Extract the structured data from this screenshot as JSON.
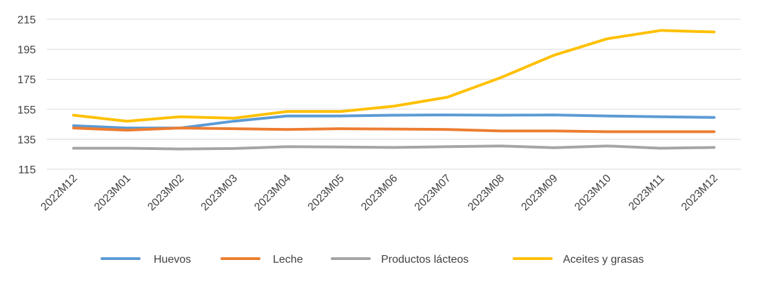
{
  "chart_data": {
    "type": "line",
    "title": "",
    "xlabel": "",
    "ylabel": "",
    "categories": [
      "2022M12",
      "2023M01",
      "2023M02",
      "2023M03",
      "2023M04",
      "2023M05",
      "2023M06",
      "2023M07",
      "2023M08",
      "2023M09",
      "2023M10",
      "2023M11",
      "2023M12"
    ],
    "y_ticks": [
      115,
      135,
      155,
      175,
      195,
      215
    ],
    "ylim": [
      115,
      215
    ],
    "grid": true,
    "legend_position": "bottom",
    "series": [
      {
        "name": "Huevos",
        "color": "#5B9BD5",
        "values": [
          144,
          142.5,
          142.5,
          147,
          150.5,
          150.5,
          151,
          151.2,
          151,
          151.2,
          150.5,
          150,
          149.5
        ]
      },
      {
        "name": "Leche",
        "color": "#ED7D31",
        "values": [
          142.5,
          141,
          142.5,
          142,
          141.5,
          142,
          141.8,
          141.5,
          140.5,
          140.5,
          140,
          140,
          140
        ]
      },
      {
        "name": "Productos lácteos",
        "color": "#A5A5A5",
        "values": [
          129,
          129,
          128.5,
          128.8,
          130,
          129.8,
          129.5,
          130,
          130.5,
          129.3,
          130.5,
          129,
          129.5
        ]
      },
      {
        "name": "Aceites y grasas",
        "color": "#FFC000",
        "values": [
          151,
          147,
          150,
          149,
          153.5,
          153.5,
          157,
          163,
          176,
          191,
          202,
          207.5,
          206.5
        ]
      }
    ]
  }
}
